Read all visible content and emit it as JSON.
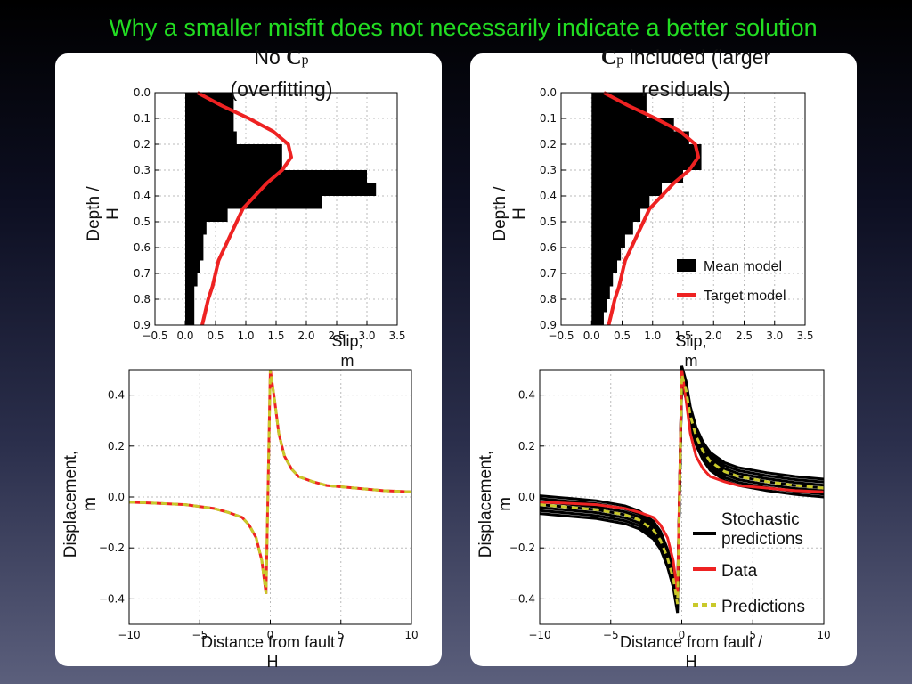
{
  "slide": {
    "title": "Why a smaller misfit does not necessarily indicate a better solution",
    "left_title_1": "No ",
    "left_title_c": "C",
    "left_title_p": "p",
    "left_title_2": "(overfitting)",
    "right_title_c": "C",
    "right_title_p": "p",
    "right_title_1": " included (larger",
    "right_title_2": "residuals)"
  },
  "colors": {
    "mean": "#000000",
    "target": "#ee2222",
    "predictions": "#c9c92a",
    "grid": "#bbbbbb"
  },
  "chart_data": [
    {
      "type": "area",
      "panel": "left-top",
      "xlabel": "Slip,\nm",
      "ylabel": "Depth /\nH",
      "xlim": [
        -0.5,
        3.5
      ],
      "ylim": [
        0.9,
        0.0
      ],
      "xticks": [
        "−0.5",
        "0.0",
        "0.5",
        "1.0",
        "1.5",
        "2.0",
        "2.5",
        "3.0",
        "3.5"
      ],
      "yticks": [
        "0.0",
        "0.1",
        "0.2",
        "0.3",
        "0.4",
        "0.5",
        "0.6",
        "0.7",
        "0.8",
        "0.9"
      ],
      "grid": true,
      "series": [
        {
          "role": "mean",
          "depth": [
            0.0,
            0.05,
            0.1,
            0.15,
            0.2,
            0.25,
            0.3,
            0.35,
            0.4,
            0.45,
            0.5,
            0.55,
            0.6,
            0.65,
            0.7,
            0.75,
            0.8,
            0.85,
            0.9
          ],
          "slip": [
            0.8,
            0.8,
            0.8,
            0.85,
            1.6,
            1.6,
            3.0,
            3.15,
            2.25,
            0.7,
            0.35,
            0.3,
            0.3,
            0.25,
            0.2,
            0.15,
            0.15,
            0.15,
            0.15
          ]
        },
        {
          "role": "target",
          "depth": [
            0.0,
            0.05,
            0.1,
            0.15,
            0.2,
            0.25,
            0.3,
            0.35,
            0.4,
            0.45,
            0.5,
            0.55,
            0.6,
            0.65,
            0.7,
            0.75,
            0.8,
            0.85,
            0.9
          ],
          "slip": [
            0.2,
            0.6,
            1.05,
            1.45,
            1.7,
            1.75,
            1.6,
            1.35,
            1.15,
            0.95,
            0.85,
            0.75,
            0.65,
            0.55,
            0.5,
            0.45,
            0.38,
            0.33,
            0.28
          ]
        }
      ]
    },
    {
      "type": "area",
      "panel": "right-top",
      "xlabel": "Slip,\nm",
      "ylabel": "Depth /\nH",
      "xlim": [
        -0.5,
        3.5
      ],
      "ylim": [
        0.9,
        0.0
      ],
      "xticks": [
        "−0.5",
        "0.0",
        "0.5",
        "1.0",
        "1.5",
        "2.0",
        "2.5",
        "3.0",
        "3.5"
      ],
      "yticks": [
        "0.0",
        "0.1",
        "0.2",
        "0.3",
        "0.4",
        "0.5",
        "0.6",
        "0.7",
        "0.8",
        "0.9"
      ],
      "grid": true,
      "legend": {
        "placement": "bottom-right",
        "entries": [
          "Mean model",
          "Target model"
        ]
      },
      "series": [
        {
          "role": "mean",
          "depth": [
            0.0,
            0.05,
            0.1,
            0.15,
            0.2,
            0.25,
            0.3,
            0.35,
            0.4,
            0.45,
            0.5,
            0.55,
            0.6,
            0.65,
            0.7,
            0.75,
            0.8,
            0.85,
            0.9
          ],
          "slip": [
            0.9,
            0.9,
            1.35,
            1.6,
            1.8,
            1.8,
            1.5,
            1.15,
            0.95,
            0.8,
            0.68,
            0.55,
            0.48,
            0.42,
            0.35,
            0.3,
            0.25,
            0.2,
            0.15
          ]
        },
        {
          "role": "target",
          "depth": [
            0.0,
            0.05,
            0.1,
            0.15,
            0.2,
            0.25,
            0.3,
            0.35,
            0.4,
            0.45,
            0.5,
            0.55,
            0.6,
            0.65,
            0.7,
            0.75,
            0.8,
            0.85,
            0.9
          ],
          "slip": [
            0.2,
            0.6,
            1.05,
            1.45,
            1.7,
            1.75,
            1.6,
            1.35,
            1.15,
            0.95,
            0.85,
            0.75,
            0.65,
            0.55,
            0.5,
            0.45,
            0.38,
            0.33,
            0.28
          ]
        }
      ]
    },
    {
      "type": "line",
      "panel": "left-bottom",
      "xlabel": "Distance from fault /\nH",
      "ylabel": "Displacement,\nm",
      "xlim": [
        -10,
        10
      ],
      "ylim": [
        -0.5,
        0.5
      ],
      "xticks": [
        "−10",
        "−5",
        "0",
        "5",
        "10"
      ],
      "yticks": [
        "0.4",
        "0.2",
        "0.0",
        "−0.2",
        "−0.4"
      ],
      "grid": true,
      "series": [
        {
          "role": "data",
          "x": [
            -10,
            -8,
            -6,
            -4,
            -3,
            -2,
            -1.5,
            -1,
            -0.6,
            -0.3,
            0,
            0.3,
            0.6,
            1,
            1.5,
            2,
            3,
            4,
            6,
            8,
            10
          ],
          "y": [
            -0.02,
            -0.025,
            -0.03,
            -0.045,
            -0.06,
            -0.08,
            -0.11,
            -0.16,
            -0.25,
            -0.38,
            0.5,
            0.38,
            0.25,
            0.16,
            0.11,
            0.08,
            0.06,
            0.045,
            0.035,
            0.025,
            0.02
          ]
        },
        {
          "role": "predictions",
          "x": [
            -10,
            -8,
            -6,
            -4,
            -3,
            -2,
            -1.5,
            -1,
            -0.6,
            -0.3,
            0,
            0.3,
            0.6,
            1,
            1.5,
            2,
            3,
            4,
            6,
            8,
            10
          ],
          "y": [
            -0.02,
            -0.025,
            -0.03,
            -0.045,
            -0.06,
            -0.08,
            -0.11,
            -0.16,
            -0.25,
            -0.38,
            0.5,
            0.38,
            0.25,
            0.16,
            0.11,
            0.08,
            0.06,
            0.045,
            0.035,
            0.025,
            0.02
          ]
        }
      ]
    },
    {
      "type": "line",
      "panel": "right-bottom",
      "xlabel": "Distance from fault /\nH",
      "ylabel": "Displacement,\nm",
      "xlim": [
        -10,
        10
      ],
      "ylim": [
        -0.5,
        0.5
      ],
      "xticks": [
        "−10",
        "−5",
        "0",
        "5",
        "10"
      ],
      "yticks": [
        "0.4",
        "0.2",
        "0.0",
        "−0.2",
        "−0.4"
      ],
      "grid": true,
      "legend": {
        "placement": "bottom-right",
        "entries": [
          "Stochastic\npredictions",
          "Data",
          "Predictions"
        ]
      },
      "series": [
        {
          "role": "stochastic",
          "x": [
            -10,
            -8,
            -6,
            -4,
            -3,
            -2,
            -1.5,
            -1,
            -0.6,
            -0.3,
            0,
            0.3,
            0.6,
            1,
            1.5,
            2,
            3,
            4,
            6,
            8,
            10
          ],
          "y": [
            -0.03,
            -0.04,
            -0.05,
            -0.07,
            -0.09,
            -0.13,
            -0.17,
            -0.24,
            -0.32,
            -0.42,
            0.48,
            0.42,
            0.32,
            0.24,
            0.18,
            0.14,
            0.1,
            0.08,
            0.06,
            0.045,
            0.035
          ],
          "spread": 0.035
        },
        {
          "role": "data",
          "x": [
            -10,
            -8,
            -6,
            -4,
            -3,
            -2,
            -1.5,
            -1,
            -0.6,
            -0.3,
            0,
            0.3,
            0.6,
            1,
            1.5,
            2,
            3,
            4,
            6,
            8,
            10
          ],
          "y": [
            -0.02,
            -0.025,
            -0.03,
            -0.045,
            -0.06,
            -0.08,
            -0.11,
            -0.16,
            -0.25,
            -0.38,
            0.5,
            0.38,
            0.25,
            0.16,
            0.11,
            0.08,
            0.06,
            0.045,
            0.035,
            0.025,
            0.02
          ]
        },
        {
          "role": "predictions",
          "x": [
            -10,
            -8,
            -6,
            -4,
            -3,
            -2,
            -1.5,
            -1,
            -0.6,
            -0.3,
            0,
            0.3,
            0.6,
            1,
            1.5,
            2,
            3,
            4,
            6,
            8,
            10
          ],
          "y": [
            -0.03,
            -0.04,
            -0.05,
            -0.07,
            -0.09,
            -0.13,
            -0.17,
            -0.24,
            -0.32,
            -0.42,
            0.48,
            0.42,
            0.32,
            0.24,
            0.18,
            0.14,
            0.1,
            0.08,
            0.06,
            0.045,
            0.035
          ]
        }
      ]
    }
  ]
}
